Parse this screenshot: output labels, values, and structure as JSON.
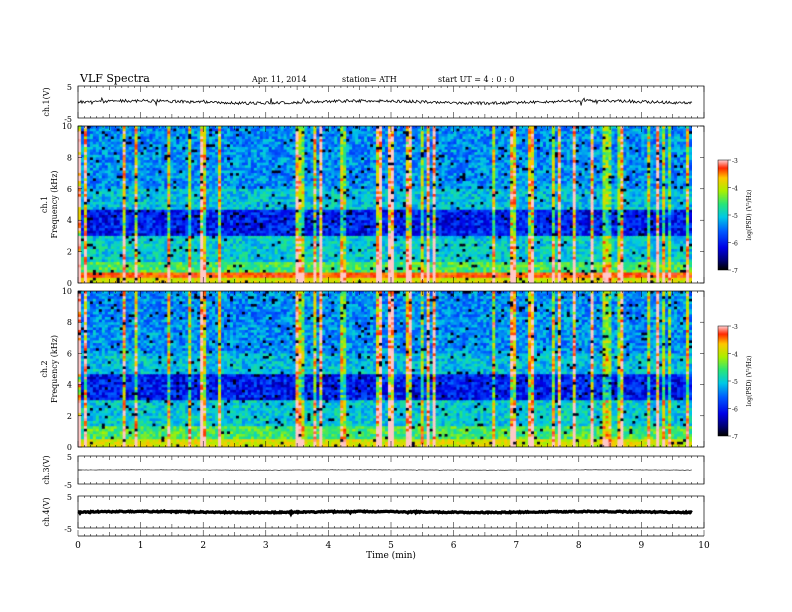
{
  "header": {
    "title": "VLF Spectra",
    "date": "Apr. 11, 2014",
    "station": "station= ATH",
    "start": "start UT = 4 : 0 : 0"
  },
  "chart_data": [
    {
      "type": "line",
      "panel": "ch1",
      "ylabel": "ch.1(V)",
      "ylim": [
        -5,
        5
      ],
      "yticks": [
        "5",
        "-5"
      ],
      "xlim": [
        0,
        10
      ],
      "baseline": 0,
      "description_values": {
        "typical_level": 0,
        "fluctuation": 1
      }
    },
    {
      "type": "heatmap",
      "panel": "ch1-spectrogram",
      "ylabel_channel": "ch.1",
      "ylabel": "Frequency (kHz)",
      "ylim": [
        0,
        10
      ],
      "yticks": [
        "0",
        "2",
        "4",
        "6",
        "8",
        "10"
      ],
      "xlim": [
        0,
        9.8
      ],
      "colorbar": {
        "label": "log(PSD) (V²/Hz)",
        "ticks": [
          "-3",
          "-4",
          "-5",
          "-6",
          "-7"
        ],
        "range": [
          -7,
          -3
        ]
      }
    },
    {
      "type": "heatmap",
      "panel": "ch2-spectrogram",
      "ylabel_channel": "ch.2",
      "ylabel": "Frequency (kHz)",
      "ylim": [
        0,
        10
      ],
      "yticks": [
        "0",
        "2",
        "4",
        "6",
        "8",
        "10"
      ],
      "xlim": [
        0,
        9.8
      ],
      "colorbar": {
        "label": "log(PSD) (V²/Hz)",
        "ticks": [
          "-3",
          "-4",
          "-5",
          "-6",
          "-7"
        ],
        "range": [
          -7,
          -3
        ]
      }
    },
    {
      "type": "line",
      "panel": "ch3",
      "ylabel": "ch.3(V)",
      "ylim": [
        -5,
        5
      ],
      "yticks": [
        "5",
        "-5"
      ],
      "baseline": 0
    },
    {
      "type": "line",
      "panel": "ch4",
      "ylabel": "ch.4(V)",
      "ylim": [
        -5,
        5
      ],
      "yticks": [
        "5",
        "-5"
      ],
      "baseline": 0
    },
    {
      "type": "axis",
      "panel": "time-axis",
      "xlabel": "Time (min)",
      "xlim": [
        0,
        10
      ],
      "xticks": [
        "0",
        "1",
        "2",
        "3",
        "4",
        "5",
        "6",
        "7",
        "8",
        "9",
        "10"
      ]
    }
  ]
}
